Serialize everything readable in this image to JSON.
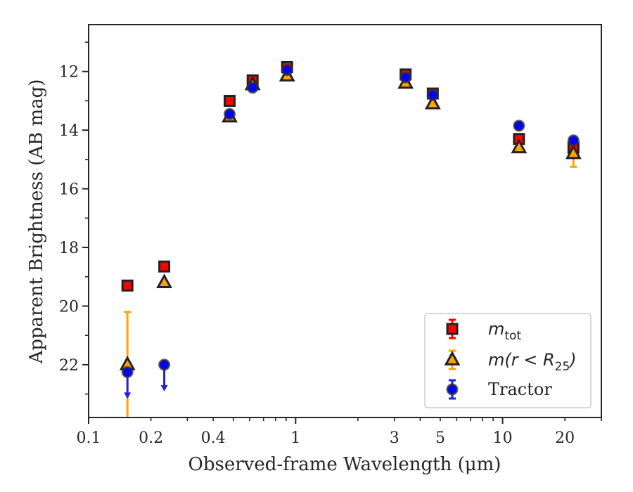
{
  "chart_data": {
    "type": "scatter",
    "title": "",
    "xlabel": "Observed-frame Wavelength (μm)",
    "ylabel": "Apparent Brightness (AB mag)",
    "x_scale": "log",
    "xlim": [
      0.1,
      30
    ],
    "ylim": [
      23.8,
      10.4
    ],
    "y_inverted": true,
    "grid": false,
    "legend_position": "lower-right",
    "x_ticks": [
      0.1,
      0.2,
      0.4,
      1,
      3,
      5,
      10,
      20
    ],
    "x_tick_labels": [
      "0.1",
      "0.2",
      "0.4",
      "1",
      "3",
      "5",
      "10",
      "20"
    ],
    "y_ticks": [
      12,
      14,
      16,
      18,
      20,
      22
    ],
    "y_tick_labels": [
      "12",
      "14",
      "16",
      "18",
      "20",
      "22"
    ],
    "series": [
      {
        "name": "m_tot",
        "marker": "square",
        "color": "#ff0000",
        "errorbar_color": "#ff0000",
        "points": [
          {
            "x": 0.154,
            "y": 19.3
          },
          {
            "x": 0.232,
            "y": 18.65
          },
          {
            "x": 0.48,
            "y": 13.0
          },
          {
            "x": 0.62,
            "y": 12.3
          },
          {
            "x": 0.91,
            "y": 11.85
          },
          {
            "x": 3.4,
            "y": 12.1
          },
          {
            "x": 4.6,
            "y": 12.75
          },
          {
            "x": 12.0,
            "y": 14.3
          },
          {
            "x": 22.0,
            "y": 14.6,
            "err": 0.15
          }
        ]
      },
      {
        "name": "m(r < R_25)",
        "marker": "triangle",
        "color": "#ffa500",
        "errorbar_color": "#ffa500",
        "points": [
          {
            "x": 0.154,
            "y": 22.0,
            "err_low": 2.2,
            "err_high": 1.8
          },
          {
            "x": 0.232,
            "y": 19.2
          },
          {
            "x": 0.48,
            "y": 13.55
          },
          {
            "x": 0.62,
            "y": 12.45
          },
          {
            "x": 0.91,
            "y": 12.15
          },
          {
            "x": 3.4,
            "y": 12.4
          },
          {
            "x": 4.6,
            "y": 13.1
          },
          {
            "x": 12.0,
            "y": 14.6
          },
          {
            "x": 22.0,
            "y": 14.8,
            "err": 0.45
          }
        ]
      },
      {
        "name": "Tractor",
        "marker": "circle",
        "color": "#0000ff",
        "errorbar_color": "#2222dd",
        "points": [
          {
            "x": 0.154,
            "y": 22.25,
            "upper_limit": true
          },
          {
            "x": 0.232,
            "y": 22.0,
            "upper_limit": true
          },
          {
            "x": 0.48,
            "y": 13.45
          },
          {
            "x": 0.62,
            "y": 12.55
          },
          {
            "x": 0.91,
            "y": 11.95
          },
          {
            "x": 3.4,
            "y": 12.2
          },
          {
            "x": 4.6,
            "y": 12.8
          },
          {
            "x": 12.0,
            "y": 13.85
          },
          {
            "x": 22.0,
            "y": 14.35
          }
        ]
      }
    ],
    "legend": [
      {
        "label_main": "m",
        "label_sub": "tot"
      },
      {
        "label_main": "m(r < R",
        "label_sub": "25",
        "label_tail": ")"
      },
      {
        "label_main": "Tractor"
      }
    ]
  }
}
